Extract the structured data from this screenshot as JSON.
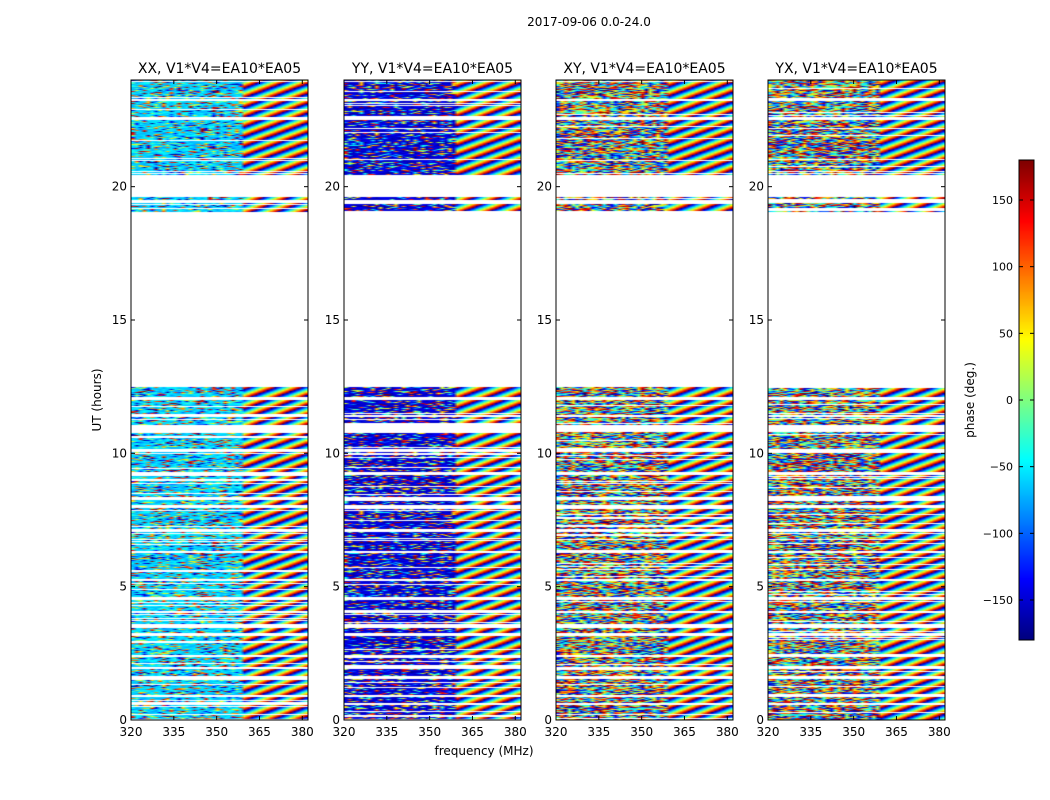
{
  "figure_title": "2017-09-06 0.0-24.0",
  "chart_data": {
    "type": "heatmap",
    "xlabel": "frequency (MHz)",
    "ylabel": "UT (hours)",
    "xlim": [
      320,
      382
    ],
    "ylim": [
      0,
      24
    ],
    "x_ticks": [
      "320",
      "335",
      "350",
      "365",
      "380"
    ],
    "y_ticks": [
      "0",
      "5",
      "10",
      "15",
      "20"
    ],
    "panels": [
      {
        "title": "XX, V1*V4=EA10*EA05",
        "bias_phase": -60
      },
      {
        "title": "YY, V1*V4=EA10*EA05",
        "bias_phase": -150
      },
      {
        "title": "XY, V1*V4=EA10*EA05",
        "bias_phase": null
      },
      {
        "title": "YX, V1*V4=EA10*EA05",
        "bias_phase": null
      }
    ],
    "data_blocks_ut": [
      [
        0.0,
        0.55
      ],
      [
        0.62,
        0.85
      ],
      [
        0.95,
        1.55
      ],
      [
        1.65,
        1.9
      ],
      [
        2.0,
        2.35
      ],
      [
        2.45,
        3.15
      ],
      [
        3.25,
        3.45
      ],
      [
        3.6,
        4.0
      ],
      [
        4.1,
        4.5
      ],
      [
        4.6,
        5.2
      ],
      [
        5.3,
        6.25
      ],
      [
        6.35,
        7.05
      ],
      [
        7.15,
        7.95
      ],
      [
        8.05,
        8.25
      ],
      [
        8.35,
        9.2
      ],
      [
        9.3,
        10.05
      ],
      [
        10.15,
        10.8
      ],
      [
        11.05,
        11.35
      ],
      [
        11.45,
        12.0
      ],
      [
        12.1,
        12.5
      ],
      [
        19.05,
        19.4
      ],
      [
        19.5,
        19.6
      ],
      [
        20.45,
        22.5
      ],
      [
        22.6,
        23.2
      ],
      [
        23.3,
        24.0
      ]
    ],
    "colorbar": {
      "label": "phase (deg.)",
      "range": [
        -180,
        180
      ],
      "ticks": [
        "150",
        "100",
        "50",
        "0",
        "−50",
        "−100",
        "−150"
      ],
      "colormap": "jet"
    },
    "grid": false
  }
}
